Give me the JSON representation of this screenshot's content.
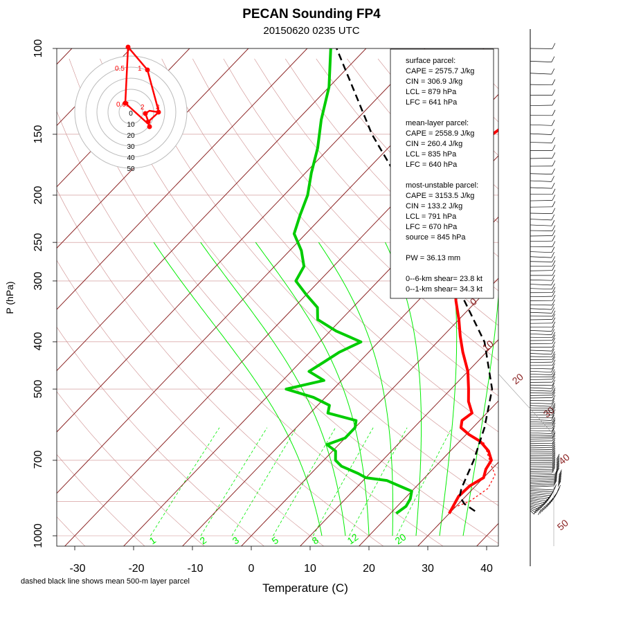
{
  "chart_data": {
    "type": "skew-t",
    "title": "PECAN Sounding FP4",
    "subtitle": "20150620 0235 UTC",
    "xlabel": "Temperature (C)",
    "ylabel": "P (hPa)",
    "footnote": "dashed black line shows mean 500-m layer parcel",
    "xlim": [
      -33,
      47
    ],
    "ylim": [
      1000,
      100
    ],
    "x_ticks": [
      -30,
      -20,
      -10,
      0,
      10,
      20,
      30,
      40
    ],
    "p_ticks": [
      100,
      150,
      200,
      250,
      300,
      400,
      500,
      700,
      1000
    ],
    "isotherm_labels": [
      "0",
      "10",
      "20",
      "30",
      "40",
      "50"
    ],
    "mixing_ratio_labels": [
      "1",
      "2",
      "3",
      "5",
      "8",
      "12",
      "20"
    ],
    "temperature_profile": [
      {
        "p": 900,
        "t": 30.0
      },
      {
        "p": 870,
        "t": 29.5
      },
      {
        "p": 830,
        "t": 28.8
      },
      {
        "p": 790,
        "t": 29.0
      },
      {
        "p": 760,
        "t": 30.0
      },
      {
        "p": 730,
        "t": 29.0
      },
      {
        "p": 700,
        "t": 28.5
      },
      {
        "p": 670,
        "t": 26.5
      },
      {
        "p": 640,
        "t": 23.5
      },
      {
        "p": 620,
        "t": 20.5
      },
      {
        "p": 600,
        "t": 18.0
      },
      {
        "p": 580,
        "t": 17.0
      },
      {
        "p": 560,
        "t": 17.5
      },
      {
        "p": 530,
        "t": 15.0
      },
      {
        "p": 500,
        "t": 13.0
      },
      {
        "p": 460,
        "t": 10.0
      },
      {
        "p": 420,
        "t": 6.0
      },
      {
        "p": 390,
        "t": 3.0
      },
      {
        "p": 360,
        "t": 0.0
      },
      {
        "p": 330,
        "t": -3.5
      },
      {
        "p": 300,
        "t": -7.0
      },
      {
        "p": 270,
        "t": -11.5
      },
      {
        "p": 250,
        "t": -15.0
      },
      {
        "p": 230,
        "t": -18.0
      },
      {
        "p": 210,
        "t": -22.0
      },
      {
        "p": 195,
        "t": -23.5
      },
      {
        "p": 180,
        "t": -24.5
      },
      {
        "p": 165,
        "t": -26.0
      },
      {
        "p": 155,
        "t": -25.0
      },
      {
        "p": 145,
        "t": -24.0
      },
      {
        "p": 135,
        "t": -26.0
      },
      {
        "p": 125,
        "t": -27.0
      },
      {
        "p": 115,
        "t": -31.0
      },
      {
        "p": 105,
        "t": -34.5
      },
      {
        "p": 100,
        "t": -37.0
      }
    ],
    "dewpoint_profile": [
      {
        "p": 900,
        "t": 21.0
      },
      {
        "p": 870,
        "t": 21.5
      },
      {
        "p": 840,
        "t": 21.0
      },
      {
        "p": 810,
        "t": 20.0
      },
      {
        "p": 790,
        "t": 17.0
      },
      {
        "p": 770,
        "t": 14.0
      },
      {
        "p": 760,
        "t": 10.0
      },
      {
        "p": 745,
        "t": 8.0
      },
      {
        "p": 720,
        "t": 4.0
      },
      {
        "p": 700,
        "t": 2.0
      },
      {
        "p": 670,
        "t": 0.5
      },
      {
        "p": 650,
        "t": -2.0
      },
      {
        "p": 630,
        "t": 0.0
      },
      {
        "p": 600,
        "t": 0.0
      },
      {
        "p": 580,
        "t": -1.0
      },
      {
        "p": 560,
        "t": -7.0
      },
      {
        "p": 540,
        "t": -8.0
      },
      {
        "p": 520,
        "t": -12.0
      },
      {
        "p": 500,
        "t": -18.0
      },
      {
        "p": 480,
        "t": -13.0
      },
      {
        "p": 460,
        "t": -17.0
      },
      {
        "p": 440,
        "t": -16.0
      },
      {
        "p": 420,
        "t": -15.0
      },
      {
        "p": 400,
        "t": -13.0
      },
      {
        "p": 380,
        "t": -19.0
      },
      {
        "p": 360,
        "t": -24.0
      },
      {
        "p": 340,
        "t": -26.0
      },
      {
        "p": 320,
        "t": -30.0
      },
      {
        "p": 300,
        "t": -34.0
      },
      {
        "p": 280,
        "t": -35.0
      },
      {
        "p": 260,
        "t": -38.0
      },
      {
        "p": 240,
        "t": -42.0
      },
      {
        "p": 220,
        "t": -44.0
      },
      {
        "p": 200,
        "t": -46.0
      },
      {
        "p": 180,
        "t": -49.0
      },
      {
        "p": 160,
        "t": -52.0
      },
      {
        "p": 140,
        "t": -56.0
      },
      {
        "p": 120,
        "t": -60.0
      },
      {
        "p": 100,
        "t": -66.0
      }
    ],
    "mean_parcel_profile": [
      {
        "p": 890,
        "t": 34.0
      },
      {
        "p": 860,
        "t": 31.0
      },
      {
        "p": 830,
        "t": 29.0
      },
      {
        "p": 800,
        "t": 28.0
      },
      {
        "p": 700,
        "t": 25.5
      },
      {
        "p": 600,
        "t": 22.0
      },
      {
        "p": 500,
        "t": 17.0
      },
      {
        "p": 400,
        "t": 8.0
      },
      {
        "p": 300,
        "t": -7.0
      },
      {
        "p": 250,
        "t": -17.0
      },
      {
        "p": 200,
        "t": -29.0
      },
      {
        "p": 150,
        "t": -45.0
      },
      {
        "p": 120,
        "t": -56.0
      },
      {
        "p": 100,
        "t": -65.0
      }
    ],
    "surface_parcel_profile": [
      {
        "p": 900,
        "t": 30.0
      },
      {
        "p": 880,
        "t": 29.5
      },
      {
        "p": 850,
        "t": 31.5
      },
      {
        "p": 800,
        "t": 32.5
      },
      {
        "p": 750,
        "t": 31.5
      },
      {
        "p": 720,
        "t": 29.5
      },
      {
        "p": 690,
        "t": 27.5
      },
      {
        "p": 660,
        "t": 25.5
      },
      {
        "p": 640,
        "t": 24.0
      }
    ],
    "hodograph": {
      "ring_labels": [
        "0",
        "10",
        "20",
        "30",
        "40",
        "50"
      ],
      "point_labels": [
        "0.5",
        "1",
        "0.01",
        "3",
        "2"
      ]
    },
    "stats": {
      "surface_header": "surface parcel:",
      "surface_cape": "CAPE = 2575.7 J/kg",
      "surface_cin": "CIN = 306.9 J/kg",
      "surface_lcl": "LCL = 879 hPa",
      "surface_lfc": "LFC = 641 hPa",
      "mean_header": "mean-layer parcel:",
      "mean_cape": "CAPE = 2558.9 J/kg",
      "mean_cin": "CIN = 260.4 J/kg",
      "mean_lcl": "LCL = 835 hPa",
      "mean_lfc": "LFC = 640 hPa",
      "mu_header": "most-unstable parcel:",
      "mu_cape": "CAPE = 3153.5 J/kg",
      "mu_cin": "CIN = 133.2 J/kg",
      "mu_lcl": "LCL = 791 hPa",
      "mu_lfc": "LFC = 670 hPa",
      "mu_source": "source = 845 hPa",
      "pw": "PW =  36.13 mm",
      "shear_06": "0--6-km shear= 23.8 kt",
      "shear_01": "0--1-km shear= 34.3 kt"
    },
    "colors": {
      "temperature": "#ff0000",
      "dewpoint": "#00cc00",
      "isotherm": "#8b2323",
      "mixing_ratio": "#00ee00",
      "parcel": "#000000"
    }
  }
}
